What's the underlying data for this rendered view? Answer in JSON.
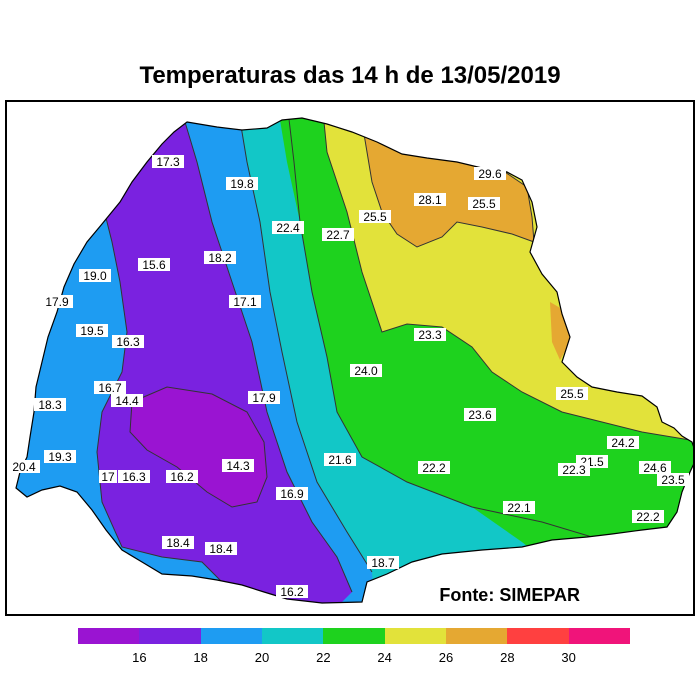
{
  "title": "Temperaturas das 14 h de 13/05/2019",
  "credit": "Fonte: SIMEPAR",
  "colorbar": {
    "colors": [
      "#9a14d2",
      "#7a22e0",
      "#1e9cf2",
      "#12c7c7",
      "#1ed21e",
      "#e2e23a",
      "#e5a832",
      "#ff4040",
      "#f0147a"
    ],
    "ticks": [
      "16",
      "18",
      "20",
      "22",
      "24",
      "26",
      "28",
      "30"
    ]
  },
  "stations": [
    {
      "v": "17.3"
    },
    {
      "v": "19.8"
    },
    {
      "v": "22.4"
    },
    {
      "v": "22.7"
    },
    {
      "v": "25.5"
    },
    {
      "v": "28.1"
    },
    {
      "v": "29.6"
    },
    {
      "v": "25.5"
    },
    {
      "v": "19.0"
    },
    {
      "v": "15.6"
    },
    {
      "v": "18.2"
    },
    {
      "v": "17.9"
    },
    {
      "v": "17.1"
    },
    {
      "v": "19.5"
    },
    {
      "v": "16.3"
    },
    {
      "v": "23.3"
    },
    {
      "v": "24.0"
    },
    {
      "v": "16.7"
    },
    {
      "v": "14.4"
    },
    {
      "v": "18.3"
    },
    {
      "v": "17.9"
    },
    {
      "v": "23.6"
    },
    {
      "v": "25.5"
    },
    {
      "v": "19.3"
    },
    {
      "v": "20.4"
    },
    {
      "v": "17"
    },
    {
      "v": "16.3"
    },
    {
      "v": "16.2"
    },
    {
      "v": "14.3"
    },
    {
      "v": "21.6"
    },
    {
      "v": "22.2"
    },
    {
      "v": "24.2"
    },
    {
      "v": "21.5"
    },
    {
      "v": "22.3"
    },
    {
      "v": "24.6"
    },
    {
      "v": "23.5"
    },
    {
      "v": "16.9"
    },
    {
      "v": "22.1"
    },
    {
      "v": "22.2"
    },
    {
      "v": "18.4"
    },
    {
      "v": "18.4"
    },
    {
      "v": "18.7"
    },
    {
      "v": "16.2"
    }
  ]
}
